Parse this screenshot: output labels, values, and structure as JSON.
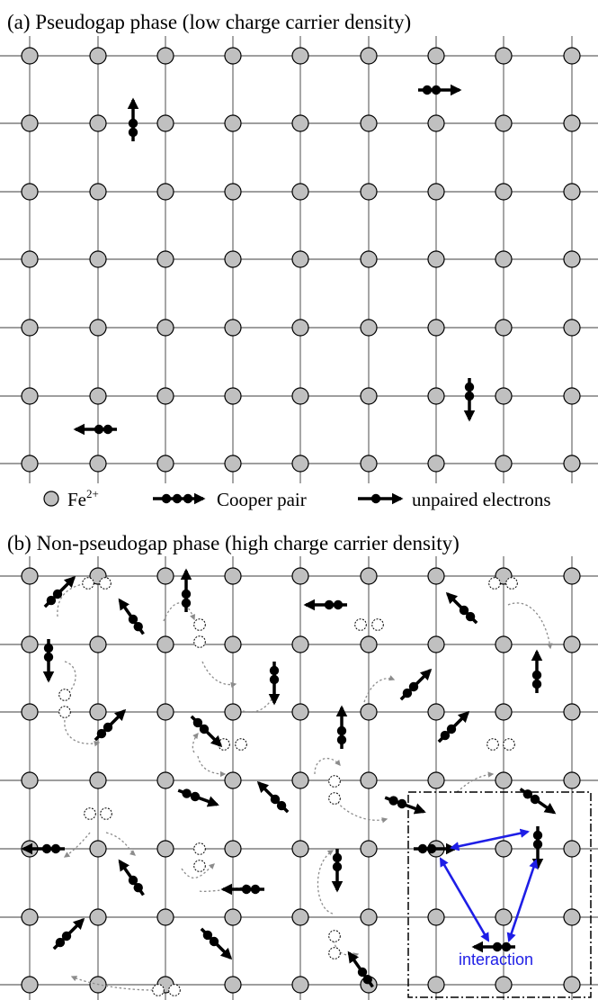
{
  "panel_a": {
    "title": "(a) Pseudogap phase (low charge carrier density)",
    "legend": {
      "ion_label_base": "Fe",
      "ion_label_sup": "2+",
      "cooper_label": "Cooper pair",
      "unpaired_label": "unpaired electrons"
    }
  },
  "panel_b": {
    "title": "(b) Non-pseudogap phase (high charge carrier density)",
    "interaction_label": "interaction"
  },
  "colors": {
    "ion_fill": "#c0c0c0",
    "grid_line": "#7f7f7f",
    "carrier": "#000000",
    "trail": "#8c8c8c",
    "interaction": "#1e1ee6",
    "interaction_text": "#1e1ee6"
  },
  "icons": {
    "ion": "grey-circle-icon",
    "cooper_pair": "cooper-pair-arrow-icon",
    "unpaired_electron": "unpaired-electron-arrow-icon",
    "interaction": "double-headed-arrow-icon"
  }
}
